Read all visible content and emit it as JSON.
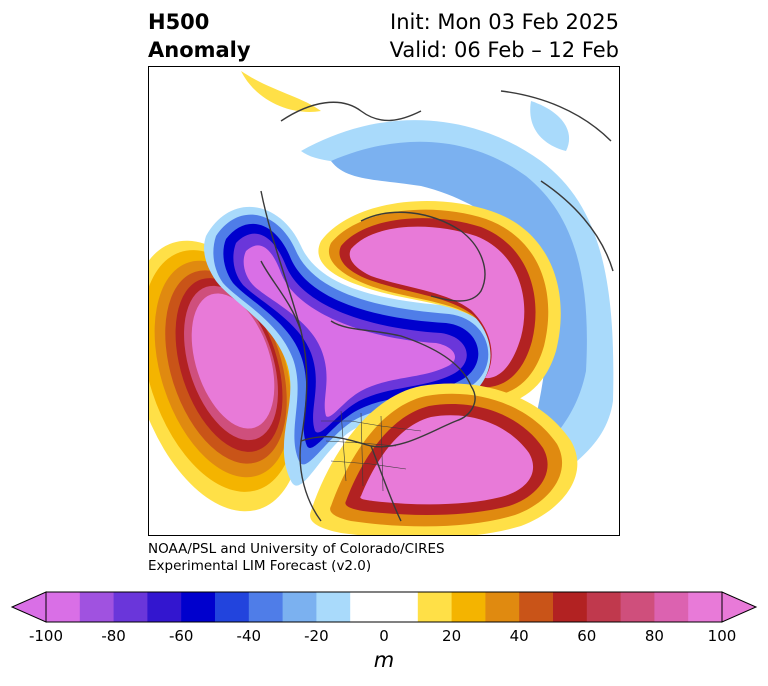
{
  "title": {
    "left_line1": "H500",
    "left_line2": "Anomaly",
    "right_line1": "Init: Mon 03 Feb 2025",
    "right_line2": "Valid: 06 Feb – 12 Feb"
  },
  "credit": {
    "line1": "NOAA/PSL and University of Colorado/CIRES",
    "line2": "Experimental LIM Forecast (v2.0)"
  },
  "colorbar": {
    "unit": "m",
    "ticks": [
      "-100",
      "-80",
      "-60",
      "-40",
      "-20",
      "0",
      "20",
      "40",
      "60",
      "80",
      "100"
    ],
    "colors": [
      "#d96fe6",
      "#a052e0",
      "#6a36da",
      "#3316cf",
      "#0000cd",
      "#2244dd",
      "#4f7de8",
      "#7bb1f0",
      "#a9dafb",
      "#ffffff",
      "#ffffff",
      "#ffe047",
      "#f4b400",
      "#e08a10",
      "#c95418",
      "#b22222",
      "#c0394d",
      "#cf4f7c",
      "#dc62b0",
      "#e87ad8"
    ],
    "under_color": "#d96fe6",
    "over_color": "#e87ad8"
  },
  "map": {
    "projection": "north-polar-stereographic",
    "field": "500 hPa geopotential height anomaly",
    "features": [
      {
        "name": "positive anomaly eastern North Pacific",
        "peak_m": 100
      },
      {
        "name": "positive anomaly Greenland / North Atlantic",
        "peak_m": 100
      },
      {
        "name": "positive anomaly eastern United States",
        "peak_m": 100
      },
      {
        "name": "negative anomaly western North America / Canada",
        "peak_m": -100
      },
      {
        "name": "negative anomaly Arctic / northern Eurasia",
        "peak_m": -40
      }
    ]
  }
}
